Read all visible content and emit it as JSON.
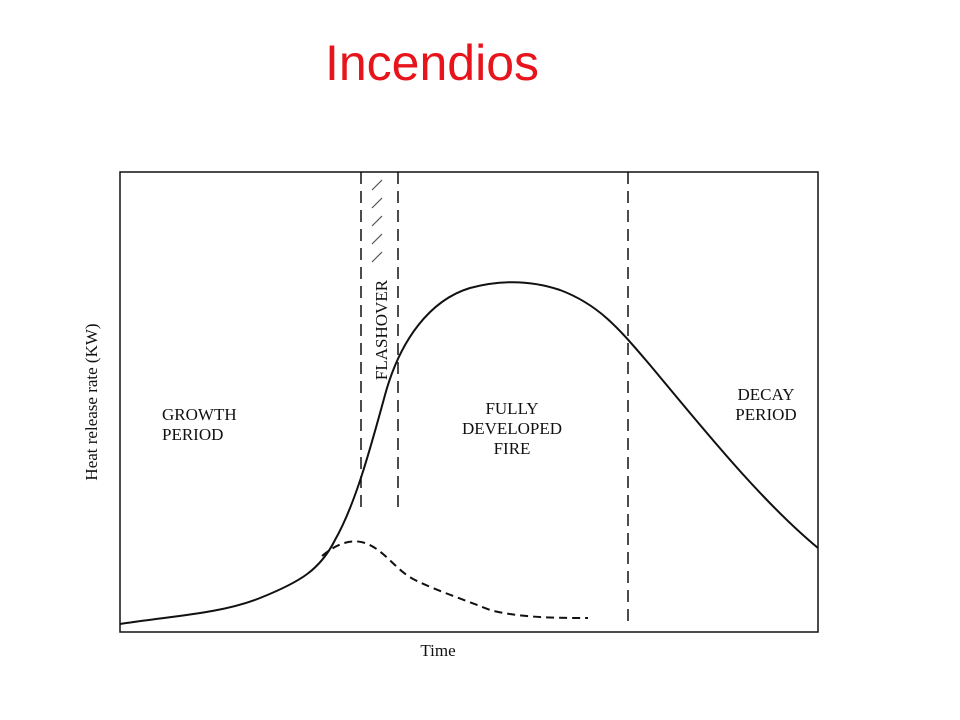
{
  "title": "Incendios",
  "diagram": {
    "y_axis_label": "Heat release rate (KW)",
    "x_axis_label": "Time",
    "regions": {
      "growth": {
        "lines": [
          "GROWTH",
          "PERIOD"
        ]
      },
      "flashover": {
        "label": "FLASHOVER"
      },
      "fully_developed": {
        "lines": [
          "FULLY",
          "DEVELOPED",
          "FIRE"
        ]
      },
      "decay": {
        "lines": [
          "DECAY",
          "PERIOD"
        ]
      }
    }
  }
}
